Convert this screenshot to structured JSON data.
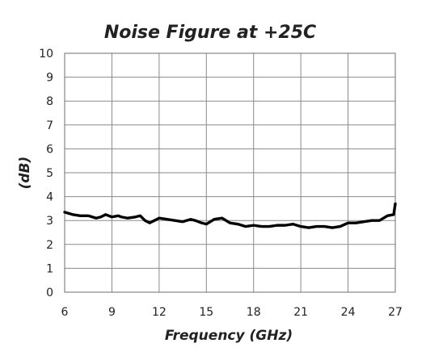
{
  "chart_data": {
    "type": "line",
    "title": "Noise Figure at +25C",
    "xlabel": "Frequency (GHz)",
    "ylabel": "(dB)",
    "xlim": [
      6,
      27
    ],
    "ylim": [
      0,
      10
    ],
    "x_ticks": [
      "6",
      "9",
      "12",
      "15",
      "18",
      "21",
      "24",
      "27"
    ],
    "y_ticks": [
      "0",
      "1",
      "2",
      "3",
      "4",
      "5",
      "6",
      "7",
      "8",
      "9",
      "10"
    ],
    "grid": true,
    "series": [
      {
        "x": [
          6.0,
          6.5,
          7.0,
          7.5,
          8.0,
          8.3,
          8.6,
          9.0,
          9.4,
          9.6,
          10.0,
          10.5,
          10.8,
          11.1,
          11.4,
          11.7,
          12.0,
          12.5,
          13.0,
          13.5,
          14.0,
          14.3,
          14.7,
          15.0,
          15.5,
          16.0,
          16.5,
          17.0,
          17.5,
          18.0,
          18.5,
          19.0,
          19.5,
          20.0,
          20.5,
          21.0,
          21.5,
          22.0,
          22.5,
          23.0,
          23.5,
          24.0,
          24.5,
          25.0,
          25.5,
          26.0,
          26.5,
          26.9,
          27.0
        ],
        "y": [
          3.35,
          3.25,
          3.2,
          3.2,
          3.1,
          3.15,
          3.25,
          3.15,
          3.2,
          3.15,
          3.1,
          3.15,
          3.2,
          3.0,
          2.9,
          3.0,
          3.1,
          3.05,
          3.0,
          2.95,
          3.05,
          3.0,
          2.9,
          2.85,
          3.05,
          3.1,
          2.9,
          2.85,
          2.75,
          2.8,
          2.75,
          2.75,
          2.8,
          2.8,
          2.85,
          2.75,
          2.7,
          2.75,
          2.75,
          2.7,
          2.75,
          2.9,
          2.9,
          2.95,
          3.0,
          3.0,
          3.2,
          3.25,
          3.7
        ]
      }
    ]
  }
}
